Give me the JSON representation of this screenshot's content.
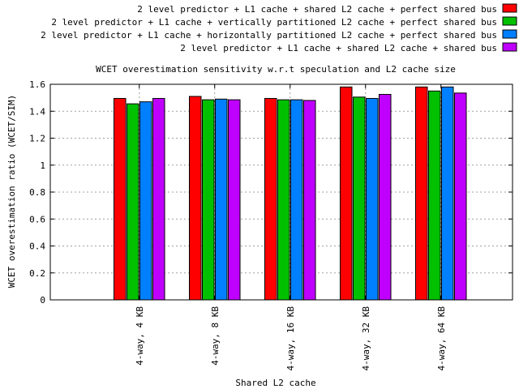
{
  "chart_data": {
    "type": "bar",
    "title": "WCET overestimation sensitivity w.r.t speculation and L2 cache size",
    "xlabel": "Shared L2 cache",
    "ylabel": "WCET overestimation ratio (WCET/SIM)",
    "ylim": [
      0,
      1.6
    ],
    "yticks": [
      "0",
      "0.2",
      "0.4",
      "0.6",
      "0.8",
      "1",
      "1.2",
      "1.4",
      "1.6"
    ],
    "grid": true,
    "legend_position": "top-right",
    "categories": [
      "4-way, 4 KB",
      "4-way, 8 KB",
      "4-way, 16 KB",
      "4-way, 32 KB",
      "4-way, 64 KB"
    ],
    "series": [
      {
        "name": "2 level predictor + L1 cache + shared L2 cache + perfect shared bus",
        "color": "#ff0000",
        "values": [
          1.495,
          1.51,
          1.495,
          1.58,
          1.58
        ]
      },
      {
        "name": "2 level predictor + L1 cache + vertically partitioned L2 cache + perfect shared bus",
        "color": "#00c000",
        "values": [
          1.455,
          1.485,
          1.485,
          1.505,
          1.55
        ]
      },
      {
        "name": "2 level predictor + L1 cache + horizontally partitioned L2 cache + perfect shared bus",
        "color": "#0080ff",
        "values": [
          1.47,
          1.49,
          1.485,
          1.495,
          1.58
        ]
      },
      {
        "name": "2 level predictor + L1 cache + shared L2 cache + shared bus",
        "color": "#c000ff",
        "values": [
          1.495,
          1.485,
          1.48,
          1.525,
          1.535
        ]
      }
    ]
  }
}
